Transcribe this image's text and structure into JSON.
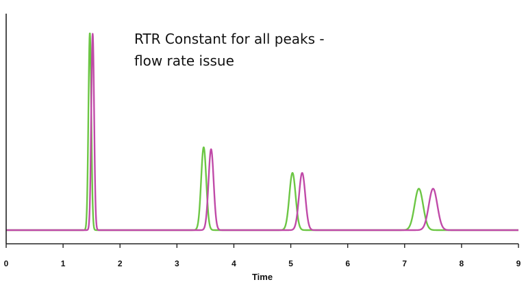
{
  "chart_data": {
    "type": "line",
    "title": "",
    "xlabel": "Time",
    "ylabel": "",
    "xlim": [
      0,
      9
    ],
    "ylim": [
      0,
      1
    ],
    "x_ticks": [
      "0",
      "1",
      "2",
      "3",
      "4",
      "5",
      "6",
      "7",
      "8",
      "9"
    ],
    "grid": false,
    "legend": "none",
    "annotation": [
      "RTR Constant for all peaks -",
      "flow rate issue"
    ],
    "series": [
      {
        "color": "#6cc644",
        "peaks": [
          {
            "time": 1.47,
            "height": 1.0,
            "width": 0.025
          },
          {
            "time": 3.47,
            "height": 0.42,
            "width": 0.045
          },
          {
            "time": 5.03,
            "height": 0.29,
            "width": 0.055
          },
          {
            "time": 7.25,
            "height": 0.21,
            "width": 0.075
          }
        ]
      },
      {
        "color": "#c04aa8",
        "peaks": [
          {
            "time": 1.52,
            "height": 0.995,
            "width": 0.025
          },
          {
            "time": 3.6,
            "height": 0.41,
            "width": 0.045
          },
          {
            "time": 5.2,
            "height": 0.29,
            "width": 0.055
          },
          {
            "time": 7.5,
            "height": 0.21,
            "width": 0.075
          }
        ]
      }
    ]
  }
}
